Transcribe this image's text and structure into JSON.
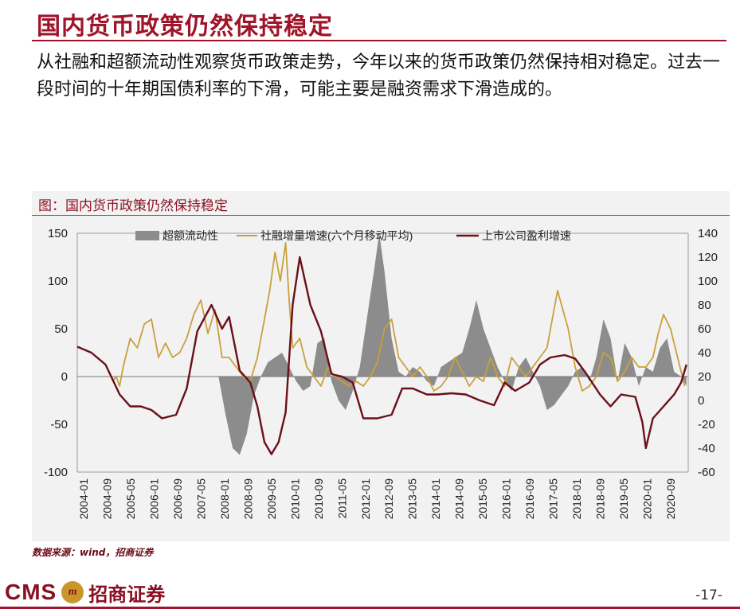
{
  "page": {
    "title": "国内货币政策仍然保持稳定",
    "body": "从社融和超额流动性观察货币政策走势，今年以来的货币政策仍然保持相对稳定。过去一段时间的十年期国债利率的下滑，可能主要是融资需求下滑造成的。",
    "figure_title": "图：国内货币政策仍然保持稳定",
    "source": "数据来源：wind，招商证券",
    "logo_text": "CMS",
    "logo_mark": "m",
    "logo_cn": "招商证券",
    "page_number": "-17-"
  },
  "colors": {
    "excess_liquidity": "#8c8c8c",
    "social_financing": "#c9a03c",
    "listed_profit": "#6b0f1a",
    "panel": "#f2f2f2"
  },
  "chart_data": {
    "type": "line",
    "title": "",
    "x_tick_labels": [
      "2004-01",
      "2004-09",
      "2005-05",
      "2006-01",
      "2006-09",
      "2007-05",
      "2008-01",
      "2008-09",
      "2009-05",
      "2010-01",
      "2010-09",
      "2011-05",
      "2012-01",
      "2012-09",
      "2013-05",
      "2014-01",
      "2014-09",
      "2015-05",
      "2016-01",
      "2016-09",
      "2017-05",
      "2018-01",
      "2018-09",
      "2019-05",
      "2020-01",
      "2020-09"
    ],
    "y_left": {
      "min": -100,
      "max": 150,
      "ticks": [
        150,
        100,
        50,
        0,
        -50,
        -100
      ]
    },
    "y_right": {
      "min": -60,
      "max": 140,
      "ticks": [
        140,
        120,
        100,
        80,
        60,
        40,
        20,
        0,
        -20,
        -40,
        -60
      ]
    },
    "legend": [
      "超额流动性",
      "社融增量增速(六个月移动平均)",
      "上市公司盈利增速"
    ],
    "legend_position": "top",
    "series": [
      {
        "name": "超额流动性",
        "kind": "area",
        "axis": "left",
        "x": [
          2008.0,
          2008.2,
          2008.4,
          2008.6,
          2008.8,
          2009.0,
          2009.2,
          2009.4,
          2009.6,
          2009.8,
          2010.0,
          2010.2,
          2010.4,
          2010.6,
          2010.8,
          2011.0,
          2011.2,
          2011.4,
          2011.6,
          2011.8,
          2012.0,
          2012.2,
          2012.4,
          2012.55,
          2012.7,
          2012.9,
          2013.1,
          2013.3,
          2013.5,
          2013.7,
          2013.9,
          2014.1,
          2014.3,
          2014.5,
          2014.7,
          2014.9,
          2015.1,
          2015.3,
          2015.5,
          2015.7,
          2015.9,
          2016.1,
          2016.3,
          2016.5,
          2016.7,
          2016.9,
          2017.1,
          2017.3,
          2017.5,
          2017.7,
          2017.9,
          2018.1,
          2018.3,
          2018.5,
          2018.7,
          2018.9,
          2019.1,
          2019.3,
          2019.5,
          2019.7,
          2019.9,
          2020.1,
          2020.3,
          2020.5,
          2020.7,
          2020.9,
          2021.1,
          2021.25
        ],
        "values": [
          0,
          -40,
          -75,
          -82,
          -60,
          -20,
          0,
          15,
          20,
          25,
          10,
          -5,
          -15,
          -10,
          35,
          40,
          -5,
          -25,
          -35,
          -15,
          10,
          60,
          110,
          150,
          110,
          40,
          5,
          0,
          10,
          5,
          -5,
          -10,
          10,
          15,
          20,
          25,
          50,
          80,
          50,
          30,
          10,
          -5,
          -15,
          10,
          20,
          5,
          -10,
          -35,
          -30,
          -20,
          -10,
          5,
          10,
          -5,
          20,
          60,
          40,
          -5,
          35,
          20,
          -10,
          10,
          5,
          30,
          40,
          5,
          0,
          -10
        ]
      },
      {
        "name": "社融增量增速(六个月移动平均)",
        "kind": "line",
        "axis": "left",
        "x": [
          2005.0,
          2005.1,
          2005.2,
          2005.3,
          2005.5,
          2005.7,
          2005.9,
          2006.1,
          2006.3,
          2006.5,
          2006.7,
          2006.9,
          2007.1,
          2007.3,
          2007.5,
          2007.7,
          2007.9,
          2008.1,
          2008.3,
          2008.5,
          2008.7,
          2008.9,
          2009.1,
          2009.3,
          2009.45,
          2009.6,
          2009.75,
          2009.9,
          2010.0,
          2010.1,
          2010.3,
          2010.5,
          2010.7,
          2010.9,
          2011.1,
          2011.3,
          2011.5,
          2011.7,
          2011.9,
          2012.1,
          2012.3,
          2012.5,
          2012.7,
          2012.9,
          2013.1,
          2013.3,
          2013.5,
          2013.7,
          2013.9,
          2014.1,
          2014.3,
          2014.5,
          2014.7,
          2014.9,
          2015.1,
          2015.3,
          2015.5,
          2015.7,
          2015.9,
          2016.1,
          2016.3,
          2016.5,
          2016.7,
          2016.9,
          2017.1,
          2017.3,
          2017.45,
          2017.6,
          2017.75,
          2017.9,
          2018.1,
          2018.3,
          2018.5,
          2018.7,
          2018.9,
          2019.1,
          2019.3,
          2019.5,
          2019.7,
          2019.9,
          2020.1,
          2020.3,
          2020.45,
          2020.6,
          2020.8,
          2021.0,
          2021.2
        ],
        "values": [
          -5,
          0,
          -10,
          10,
          40,
          30,
          55,
          60,
          20,
          35,
          20,
          25,
          40,
          65,
          80,
          45,
          70,
          20,
          20,
          10,
          0,
          -5,
          20,
          60,
          90,
          130,
          100,
          140,
          80,
          30,
          40,
          10,
          0,
          -10,
          10,
          0,
          -5,
          -10,
          -5,
          -10,
          0,
          15,
          50,
          60,
          20,
          10,
          0,
          10,
          0,
          -15,
          -10,
          0,
          20,
          5,
          -10,
          0,
          -5,
          20,
          0,
          -10,
          20,
          10,
          0,
          10,
          20,
          30,
          60,
          90,
          70,
          50,
          10,
          -15,
          -10,
          0,
          25,
          20,
          -5,
          5,
          20,
          10,
          10,
          20,
          45,
          65,
          50,
          20,
          -10
        ]
      },
      {
        "name": "上市公司盈利增速",
        "kind": "line",
        "axis": "right",
        "x": [
          2004.0,
          2004.4,
          2004.8,
          2005.2,
          2005.5,
          2005.8,
          2006.1,
          2006.4,
          2006.8,
          2007.1,
          2007.4,
          2007.8,
          2008.1,
          2008.3,
          2008.6,
          2008.9,
          2009.1,
          2009.3,
          2009.5,
          2009.7,
          2009.9,
          2010.1,
          2010.3,
          2010.6,
          2010.9,
          2011.2,
          2011.5,
          2011.8,
          2012.1,
          2012.5,
          2012.9,
          2013.2,
          2013.5,
          2013.9,
          2014.2,
          2014.6,
          2015.0,
          2015.4,
          2015.8,
          2016.1,
          2016.4,
          2016.8,
          2017.1,
          2017.4,
          2017.8,
          2018.1,
          2018.4,
          2018.8,
          2019.1,
          2019.4,
          2019.8,
          2020.0,
          2020.1,
          2020.3,
          2020.6,
          2020.9,
          2021.1,
          2021.25
        ],
        "values": [
          45,
          40,
          30,
          5,
          -5,
          -5,
          -8,
          -15,
          -12,
          10,
          58,
          80,
          60,
          70,
          25,
          15,
          -5,
          -35,
          -45,
          -35,
          -10,
          80,
          120,
          80,
          58,
          22,
          20,
          15,
          -15,
          -15,
          -12,
          10,
          10,
          5,
          5,
          6,
          5,
          0,
          -4,
          15,
          8,
          15,
          30,
          36,
          38,
          35,
          23,
          5,
          -5,
          5,
          3,
          -18,
          -40,
          -15,
          -5,
          5,
          15,
          30
        ]
      }
    ]
  }
}
